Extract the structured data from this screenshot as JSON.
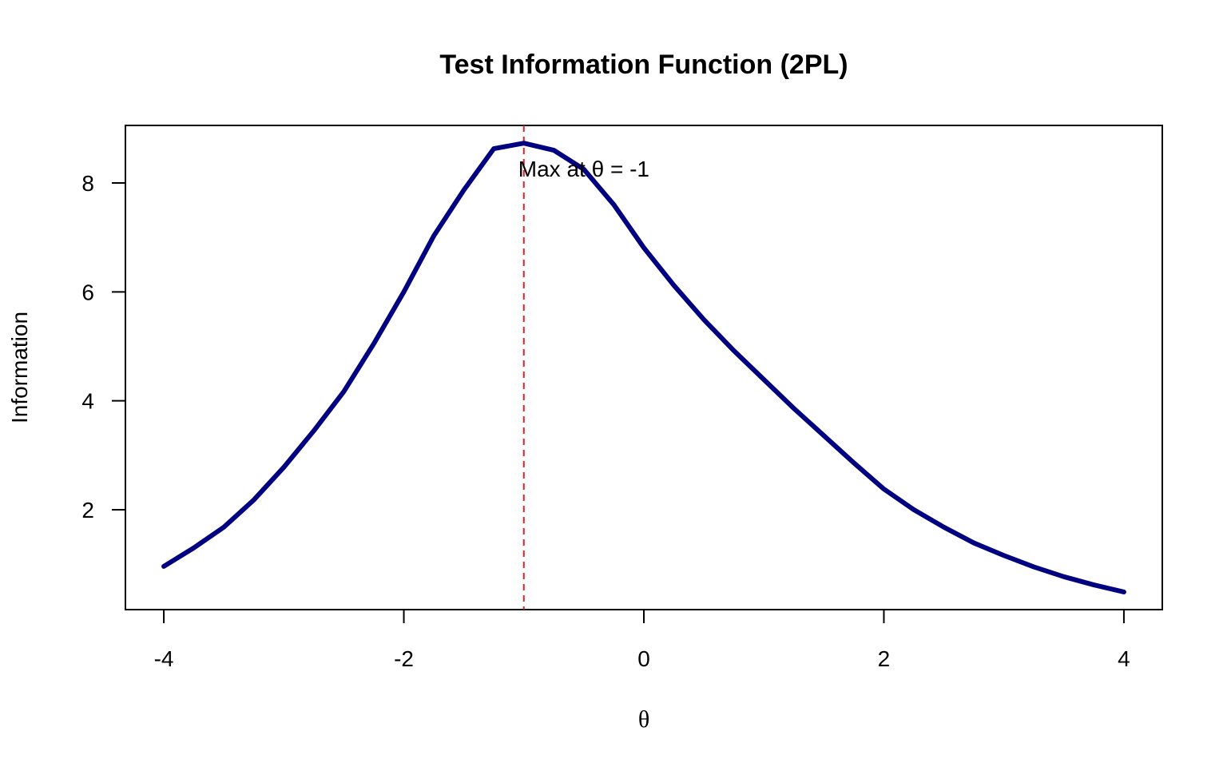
{
  "chart_data": {
    "type": "line",
    "title": "Test Information Function (2PL)",
    "x_label": "θ",
    "y_label": "Information",
    "x": [
      -4,
      -3.75,
      -3.5,
      -3.25,
      -3,
      -2.75,
      -2.5,
      -2.25,
      -2,
      -1.75,
      -1.5,
      -1.25,
      -1,
      -0.75,
      -0.5,
      -0.25,
      0,
      0.25,
      0.5,
      0.75,
      1,
      1.25,
      1.5,
      1.75,
      2,
      2.25,
      2.5,
      2.75,
      3,
      3.25,
      3.5,
      3.75,
      4
    ],
    "series": [
      {
        "name": "Information",
        "color": "#000080",
        "values": [
          0.96,
          1.3,
          1.68,
          2.18,
          2.78,
          3.45,
          4.17,
          5.05,
          6.0,
          7.03,
          7.87,
          8.63,
          8.73,
          8.6,
          8.25,
          7.6,
          6.81,
          6.12,
          5.49,
          4.92,
          4.39,
          3.86,
          3.36,
          2.86,
          2.38,
          2.0,
          1.68,
          1.39,
          1.16,
          0.95,
          0.77,
          0.62,
          0.49
        ]
      }
    ],
    "vline": {
      "x": -1,
      "color": "#e0202a"
    },
    "annotation": "Max at θ = -1",
    "xlim": [
      -4.32,
      4.32
    ],
    "ylim": [
      0.166,
      9.056
    ],
    "xticks": [
      -4,
      -2,
      0,
      2,
      4
    ],
    "yticks": [
      2,
      4,
      6,
      8
    ],
    "grid": false
  }
}
